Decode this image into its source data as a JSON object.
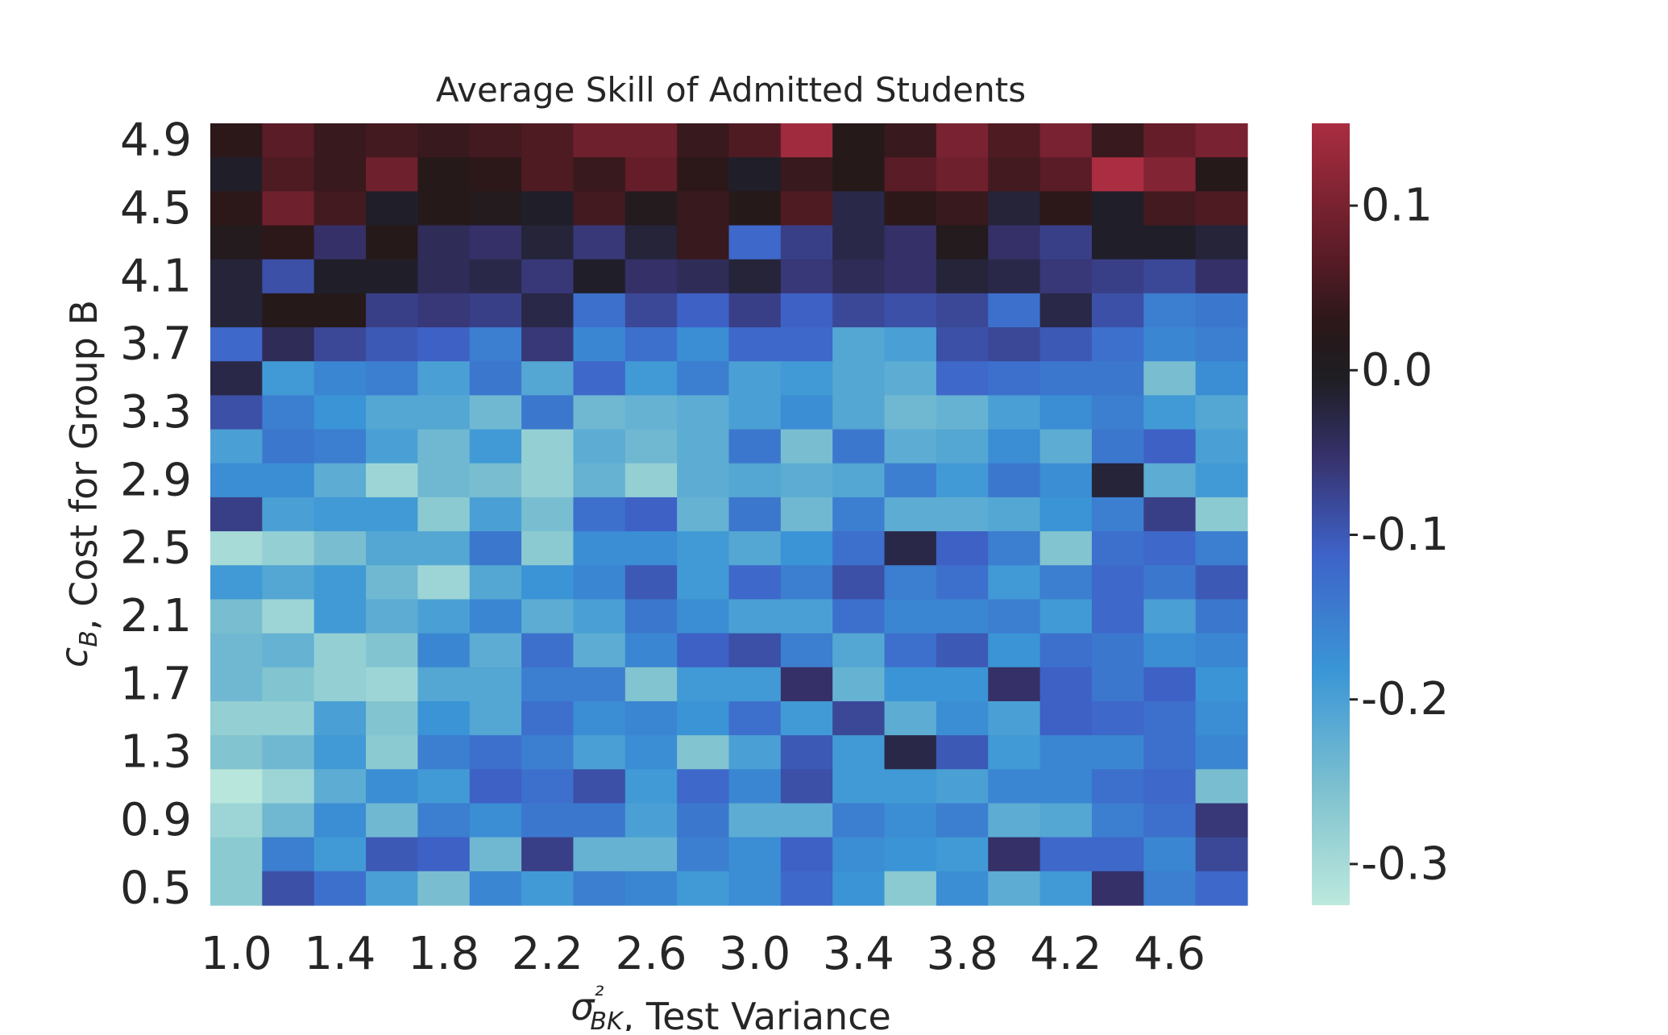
{
  "chart_data": {
    "type": "heatmap",
    "title": "Average Skill of Admitted Students",
    "xlabel_sym": "σ²BK",
    "xlabel_rest": ", Test Variance",
    "xlabel": "σ²BK, Test Variance",
    "ylabel_sym": "cB",
    "ylabel_rest": ", Cost for Group B",
    "ylabel": "cB, Cost for Group B",
    "x_tick_labels": [
      "1.0",
      "1.4",
      "1.8",
      "2.2",
      "2.6",
      "3.0",
      "3.4",
      "3.8",
      "4.2",
      "4.6"
    ],
    "y_tick_labels": [
      "4.9",
      "4.5",
      "4.1",
      "3.7",
      "3.3",
      "2.9",
      "2.5",
      "2.1",
      "1.7",
      "1.3",
      "0.9",
      "0.5"
    ],
    "x_values": [
      1.0,
      1.2,
      1.4,
      1.6,
      1.8,
      2.0,
      2.2,
      2.4,
      2.6,
      2.8,
      3.0,
      3.2,
      3.4,
      3.6,
      3.8,
      4.0,
      4.2,
      4.4,
      4.6,
      4.8
    ],
    "y_values": [
      4.9,
      4.7,
      4.5,
      4.3,
      4.1,
      3.9,
      3.7,
      3.5,
      3.3,
      3.1,
      2.9,
      2.7,
      2.5,
      2.3,
      2.1,
      1.9,
      1.7,
      1.5,
      1.3,
      1.1,
      0.9,
      0.7,
      0.5
    ],
    "colorbar": {
      "range": [
        -0.325,
        0.15
      ],
      "ticks": [
        0.1,
        0.0,
        -0.1,
        -0.2,
        -0.3
      ],
      "tick_labels": [
        "0.1",
        "0.0",
        "-0.1",
        "-0.2",
        "-0.3"
      ],
      "colormap": "icefire"
    },
    "z": [
      [
        0.03,
        0.07,
        0.04,
        0.05,
        0.04,
        0.05,
        0.06,
        0.09,
        0.09,
        0.04,
        0.06,
        0.14,
        0.02,
        0.04,
        0.1,
        0.06,
        0.1,
        0.04,
        0.08,
        0.1
      ],
      [
        -0.01,
        0.06,
        0.04,
        0.09,
        0.02,
        0.03,
        0.06,
        0.04,
        0.08,
        0.03,
        -0.01,
        0.04,
        0.02,
        0.07,
        0.09,
        0.05,
        0.07,
        0.15,
        0.11,
        0.02
      ],
      [
        0.03,
        0.09,
        0.05,
        -0.01,
        0.02,
        0.01,
        -0.01,
        0.05,
        0.01,
        0.04,
        0.02,
        0.06,
        -0.03,
        0.03,
        0.04,
        -0.02,
        0.03,
        -0.01,
        0.05,
        0.06
      ],
      [
        0.01,
        0.03,
        -0.05,
        0.02,
        -0.04,
        -0.05,
        -0.02,
        -0.06,
        -0.02,
        0.04,
        -0.12,
        -0.07,
        -0.03,
        -0.05,
        0.01,
        -0.05,
        -0.07,
        -0.01,
        -0.01,
        -0.02
      ],
      [
        -0.02,
        -0.09,
        -0.01,
        -0.01,
        -0.04,
        -0.03,
        -0.06,
        -0.01,
        -0.05,
        -0.04,
        -0.02,
        -0.06,
        -0.04,
        -0.05,
        -0.02,
        -0.03,
        -0.06,
        -0.07,
        -0.08,
        -0.05
      ],
      [
        -0.02,
        0.02,
        0.02,
        -0.07,
        -0.06,
        -0.07,
        -0.03,
        -0.13,
        -0.08,
        -0.11,
        -0.07,
        -0.11,
        -0.08,
        -0.09,
        -0.08,
        -0.13,
        -0.03,
        -0.09,
        -0.15,
        -0.14
      ],
      [
        -0.12,
        -0.04,
        -0.08,
        -0.1,
        -0.11,
        -0.15,
        -0.06,
        -0.16,
        -0.13,
        -0.17,
        -0.12,
        -0.12,
        -0.21,
        -0.2,
        -0.09,
        -0.08,
        -0.1,
        -0.13,
        -0.16,
        -0.15
      ],
      [
        -0.03,
        -0.19,
        -0.16,
        -0.15,
        -0.2,
        -0.14,
        -0.21,
        -0.12,
        -0.19,
        -0.15,
        -0.2,
        -0.19,
        -0.21,
        -0.22,
        -0.12,
        -0.13,
        -0.14,
        -0.14,
        -0.25,
        -0.17
      ],
      [
        -0.09,
        -0.15,
        -0.18,
        -0.21,
        -0.21,
        -0.24,
        -0.14,
        -0.24,
        -0.23,
        -0.22,
        -0.2,
        -0.17,
        -0.21,
        -0.24,
        -0.23,
        -0.2,
        -0.17,
        -0.15,
        -0.19,
        -0.21
      ],
      [
        -0.2,
        -0.14,
        -0.15,
        -0.2,
        -0.24,
        -0.19,
        -0.28,
        -0.22,
        -0.24,
        -0.22,
        -0.14,
        -0.25,
        -0.14,
        -0.22,
        -0.21,
        -0.17,
        -0.22,
        -0.14,
        -0.11,
        -0.2
      ],
      [
        -0.17,
        -0.17,
        -0.22,
        -0.29,
        -0.24,
        -0.25,
        -0.28,
        -0.23,
        -0.28,
        -0.22,
        -0.21,
        -0.22,
        -0.21,
        -0.15,
        -0.19,
        -0.14,
        -0.17,
        -0.02,
        -0.22,
        -0.19
      ],
      [
        -0.07,
        -0.2,
        -0.19,
        -0.19,
        -0.27,
        -0.2,
        -0.25,
        -0.13,
        -0.11,
        -0.23,
        -0.14,
        -0.24,
        -0.15,
        -0.22,
        -0.22,
        -0.21,
        -0.18,
        -0.15,
        -0.07,
        -0.27
      ],
      [
        -0.3,
        -0.28,
        -0.25,
        -0.21,
        -0.21,
        -0.14,
        -0.27,
        -0.17,
        -0.17,
        -0.19,
        -0.21,
        -0.18,
        -0.13,
        -0.03,
        -0.11,
        -0.15,
        -0.26,
        -0.13,
        -0.12,
        -0.15
      ],
      [
        -0.19,
        -0.21,
        -0.19,
        -0.24,
        -0.29,
        -0.21,
        -0.18,
        -0.16,
        -0.1,
        -0.19,
        -0.12,
        -0.15,
        -0.09,
        -0.15,
        -0.13,
        -0.19,
        -0.15,
        -0.12,
        -0.14,
        -0.1
      ],
      [
        -0.25,
        -0.29,
        -0.19,
        -0.22,
        -0.2,
        -0.16,
        -0.22,
        -0.2,
        -0.14,
        -0.17,
        -0.2,
        -0.2,
        -0.13,
        -0.16,
        -0.16,
        -0.15,
        -0.19,
        -0.12,
        -0.2,
        -0.14
      ],
      [
        -0.24,
        -0.23,
        -0.28,
        -0.26,
        -0.16,
        -0.22,
        -0.13,
        -0.22,
        -0.16,
        -0.11,
        -0.09,
        -0.15,
        -0.21,
        -0.13,
        -0.1,
        -0.18,
        -0.13,
        -0.14,
        -0.17,
        -0.16
      ],
      [
        -0.24,
        -0.26,
        -0.28,
        -0.29,
        -0.21,
        -0.21,
        -0.15,
        -0.15,
        -0.26,
        -0.19,
        -0.19,
        -0.05,
        -0.23,
        -0.18,
        -0.18,
        -0.05,
        -0.11,
        -0.14,
        -0.11,
        -0.18
      ],
      [
        -0.28,
        -0.28,
        -0.2,
        -0.26,
        -0.18,
        -0.21,
        -0.13,
        -0.17,
        -0.16,
        -0.18,
        -0.13,
        -0.19,
        -0.08,
        -0.22,
        -0.17,
        -0.2,
        -0.11,
        -0.12,
        -0.13,
        -0.17
      ],
      [
        -0.26,
        -0.24,
        -0.19,
        -0.27,
        -0.15,
        -0.13,
        -0.15,
        -0.2,
        -0.17,
        -0.26,
        -0.2,
        -0.1,
        -0.19,
        -0.03,
        -0.1,
        -0.19,
        -0.16,
        -0.16,
        -0.13,
        -0.16
      ],
      [
        -0.32,
        -0.29,
        -0.22,
        -0.17,
        -0.19,
        -0.11,
        -0.13,
        -0.09,
        -0.19,
        -0.12,
        -0.16,
        -0.09,
        -0.19,
        -0.19,
        -0.2,
        -0.16,
        -0.16,
        -0.13,
        -0.12,
        -0.25
      ],
      [
        -0.29,
        -0.24,
        -0.17,
        -0.24,
        -0.15,
        -0.17,
        -0.14,
        -0.14,
        -0.2,
        -0.14,
        -0.22,
        -0.22,
        -0.15,
        -0.17,
        -0.15,
        -0.22,
        -0.21,
        -0.15,
        -0.13,
        -0.06
      ],
      [
        -0.27,
        -0.15,
        -0.19,
        -0.1,
        -0.11,
        -0.24,
        -0.07,
        -0.23,
        -0.23,
        -0.15,
        -0.17,
        -0.11,
        -0.17,
        -0.18,
        -0.19,
        -0.05,
        -0.12,
        -0.12,
        -0.16,
        -0.08
      ],
      [
        -0.27,
        -0.09,
        -0.13,
        -0.2,
        -0.25,
        -0.16,
        -0.19,
        -0.15,
        -0.16,
        -0.19,
        -0.17,
        -0.12,
        -0.18,
        -0.27,
        -0.17,
        -0.22,
        -0.19,
        -0.05,
        -0.15,
        -0.12
      ]
    ]
  }
}
